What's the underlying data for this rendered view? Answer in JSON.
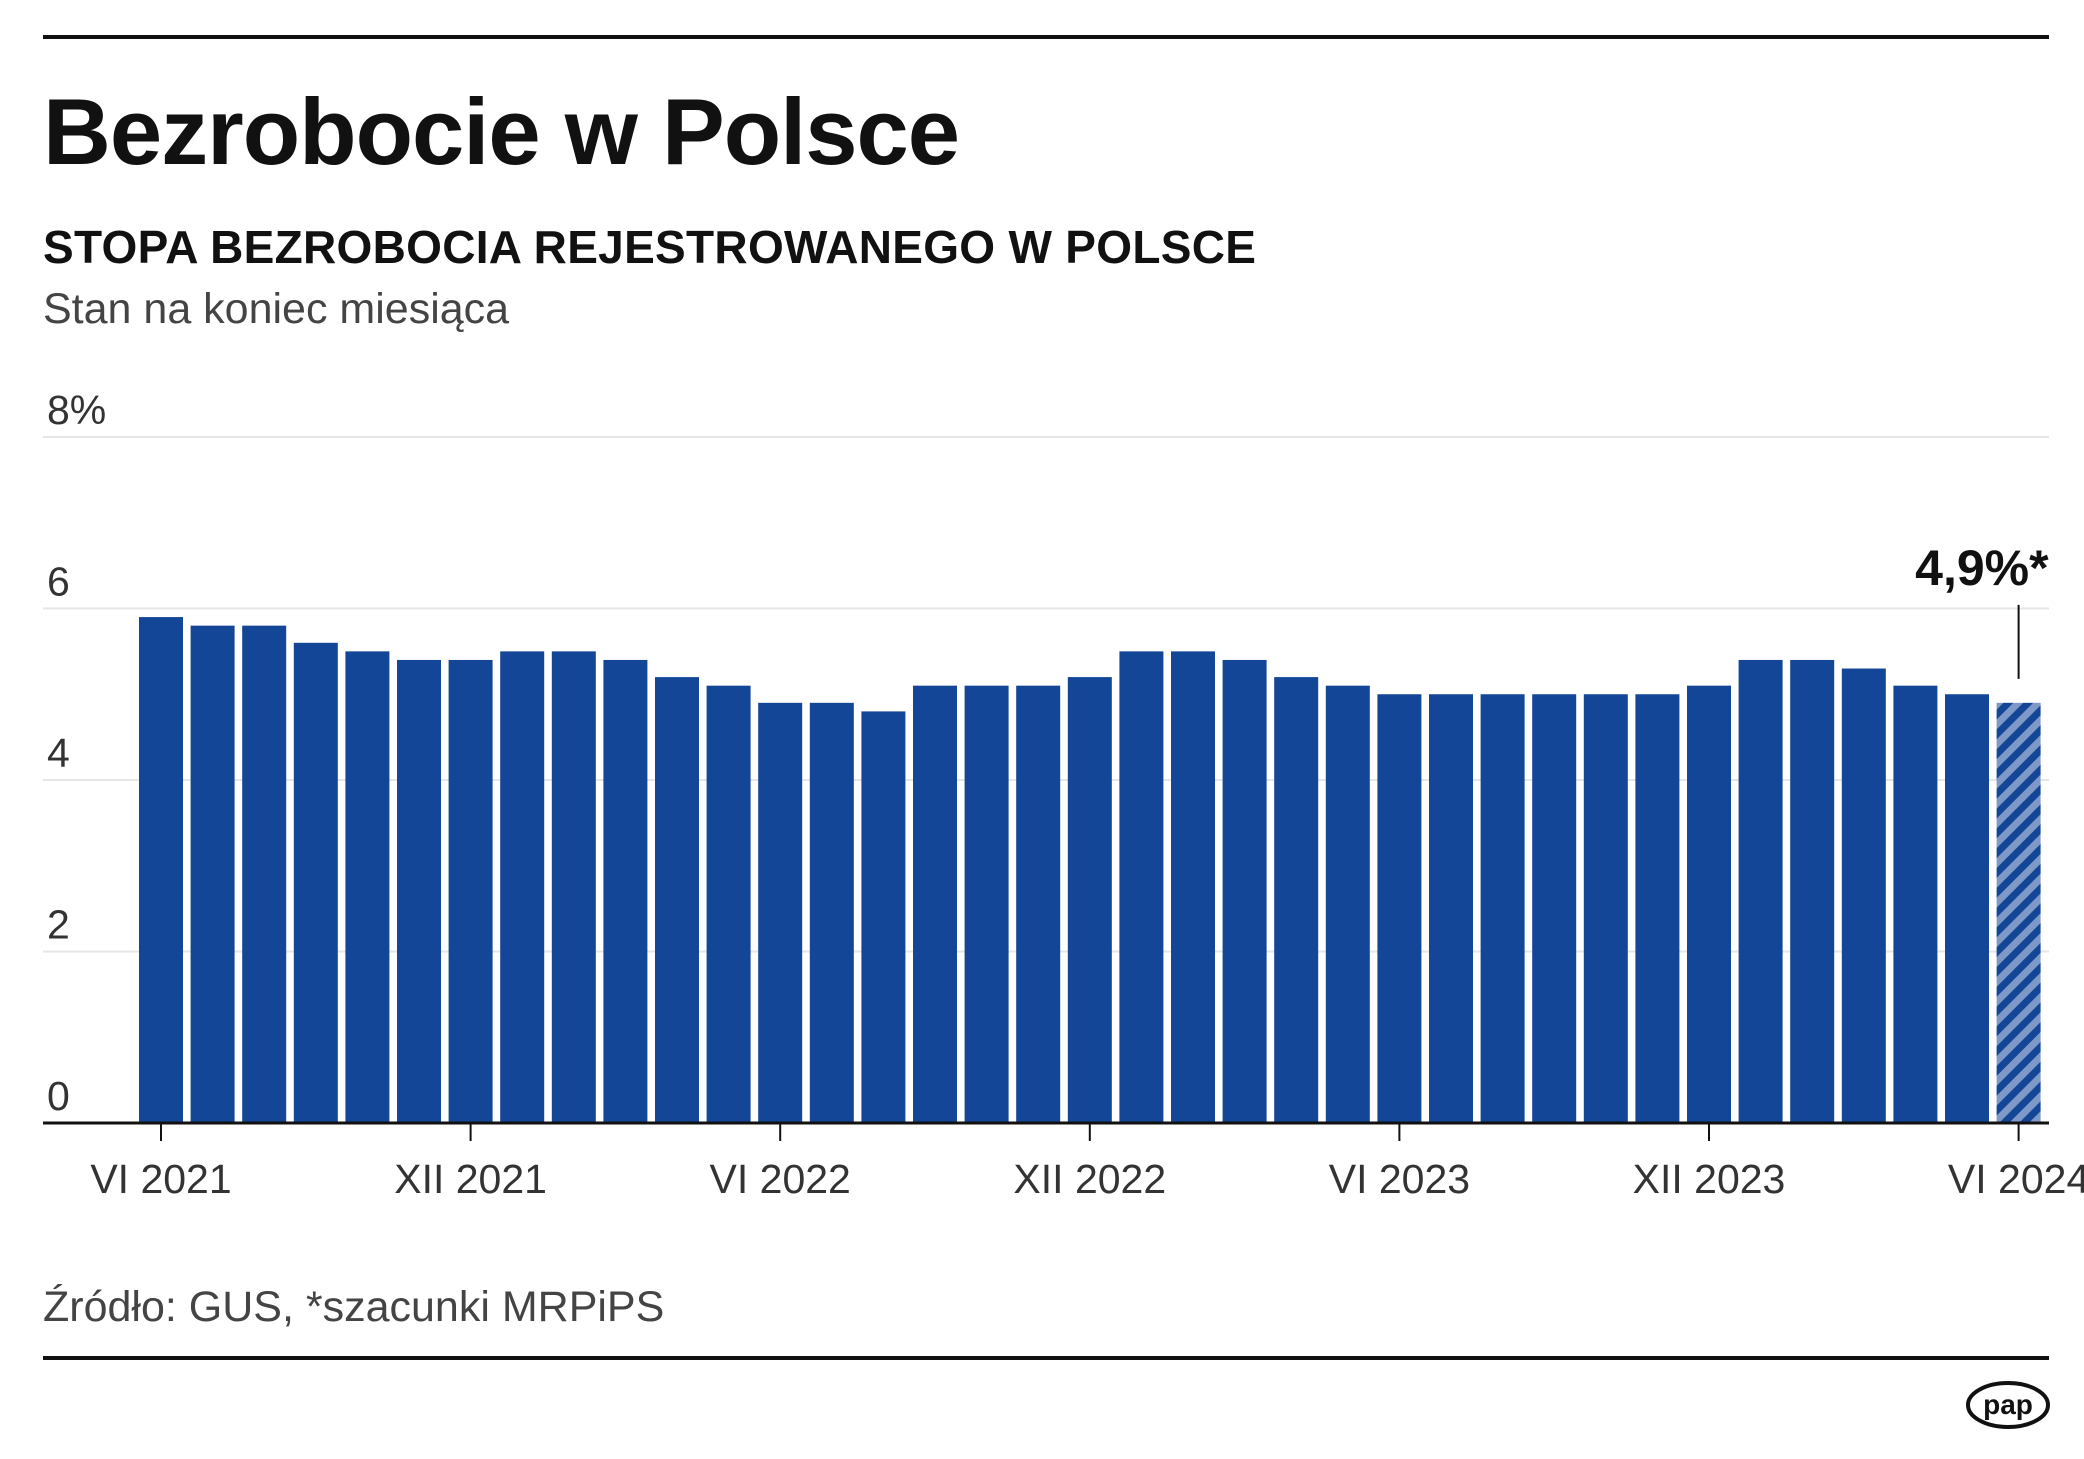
{
  "header": {
    "title": "Bezrobocie w Polsce",
    "subtitle": "STOPA BEZROBOCIA REJESTROWANEGO W POLSCE",
    "note": "Stan na koniec miesiąca"
  },
  "footer": {
    "source": "Źródło: GUS, *szacunki MRPiPS",
    "logo_text": "pap"
  },
  "colors": {
    "bar": "#134696",
    "bar_estimate_stripe": "#7e99c8",
    "text": "#111111",
    "gridline": "#e6e6e6"
  },
  "chart_data": {
    "type": "bar",
    "unit": "%",
    "ylim": [
      0,
      8
    ],
    "yticks": [
      0,
      2,
      4,
      6,
      8
    ],
    "ytick_labels": [
      "0",
      "2",
      "4",
      "6",
      "8%"
    ],
    "grid": true,
    "categories": [
      "VI 2021",
      "VII 2021",
      "VIII 2021",
      "IX 2021",
      "X 2021",
      "XI 2021",
      "XII 2021",
      "I 2022",
      "II 2022",
      "III 2022",
      "IV 2022",
      "V 2022",
      "VI 2022",
      "VII 2022",
      "VIII 2022",
      "IX 2022",
      "X 2022",
      "XI 2022",
      "XII 2022",
      "I 2023",
      "II 2023",
      "III 2023",
      "IV 2023",
      "V 2023",
      "VI 2023",
      "VII 2023",
      "VIII 2023",
      "IX 2023",
      "X 2023",
      "XI 2023",
      "XII 2023",
      "I 2024",
      "II 2024",
      "III 2024",
      "IV 2024",
      "V 2024",
      "VI 2024"
    ],
    "values": [
      5.9,
      5.8,
      5.8,
      5.6,
      5.5,
      5.4,
      5.4,
      5.5,
      5.5,
      5.4,
      5.2,
      5.1,
      4.9,
      4.9,
      4.8,
      5.1,
      5.1,
      5.1,
      5.2,
      5.5,
      5.5,
      5.4,
      5.2,
      5.1,
      5.0,
      5.0,
      5.0,
      5.0,
      5.0,
      5.0,
      5.1,
      5.4,
      5.4,
      5.3,
      5.1,
      5.0,
      4.9
    ],
    "estimated": [
      false,
      false,
      false,
      false,
      false,
      false,
      false,
      false,
      false,
      false,
      false,
      false,
      false,
      false,
      false,
      false,
      false,
      false,
      false,
      false,
      false,
      false,
      false,
      false,
      false,
      false,
      false,
      false,
      false,
      false,
      false,
      false,
      false,
      false,
      false,
      false,
      true
    ],
    "xtick_labels": [
      "VI 2021",
      "XII 2021",
      "VI 2022",
      "XII 2022",
      "VI 2023",
      "XII 2023",
      "VI 2024"
    ],
    "annotation": {
      "category": "VI 2024",
      "text": "4,9%*"
    }
  }
}
